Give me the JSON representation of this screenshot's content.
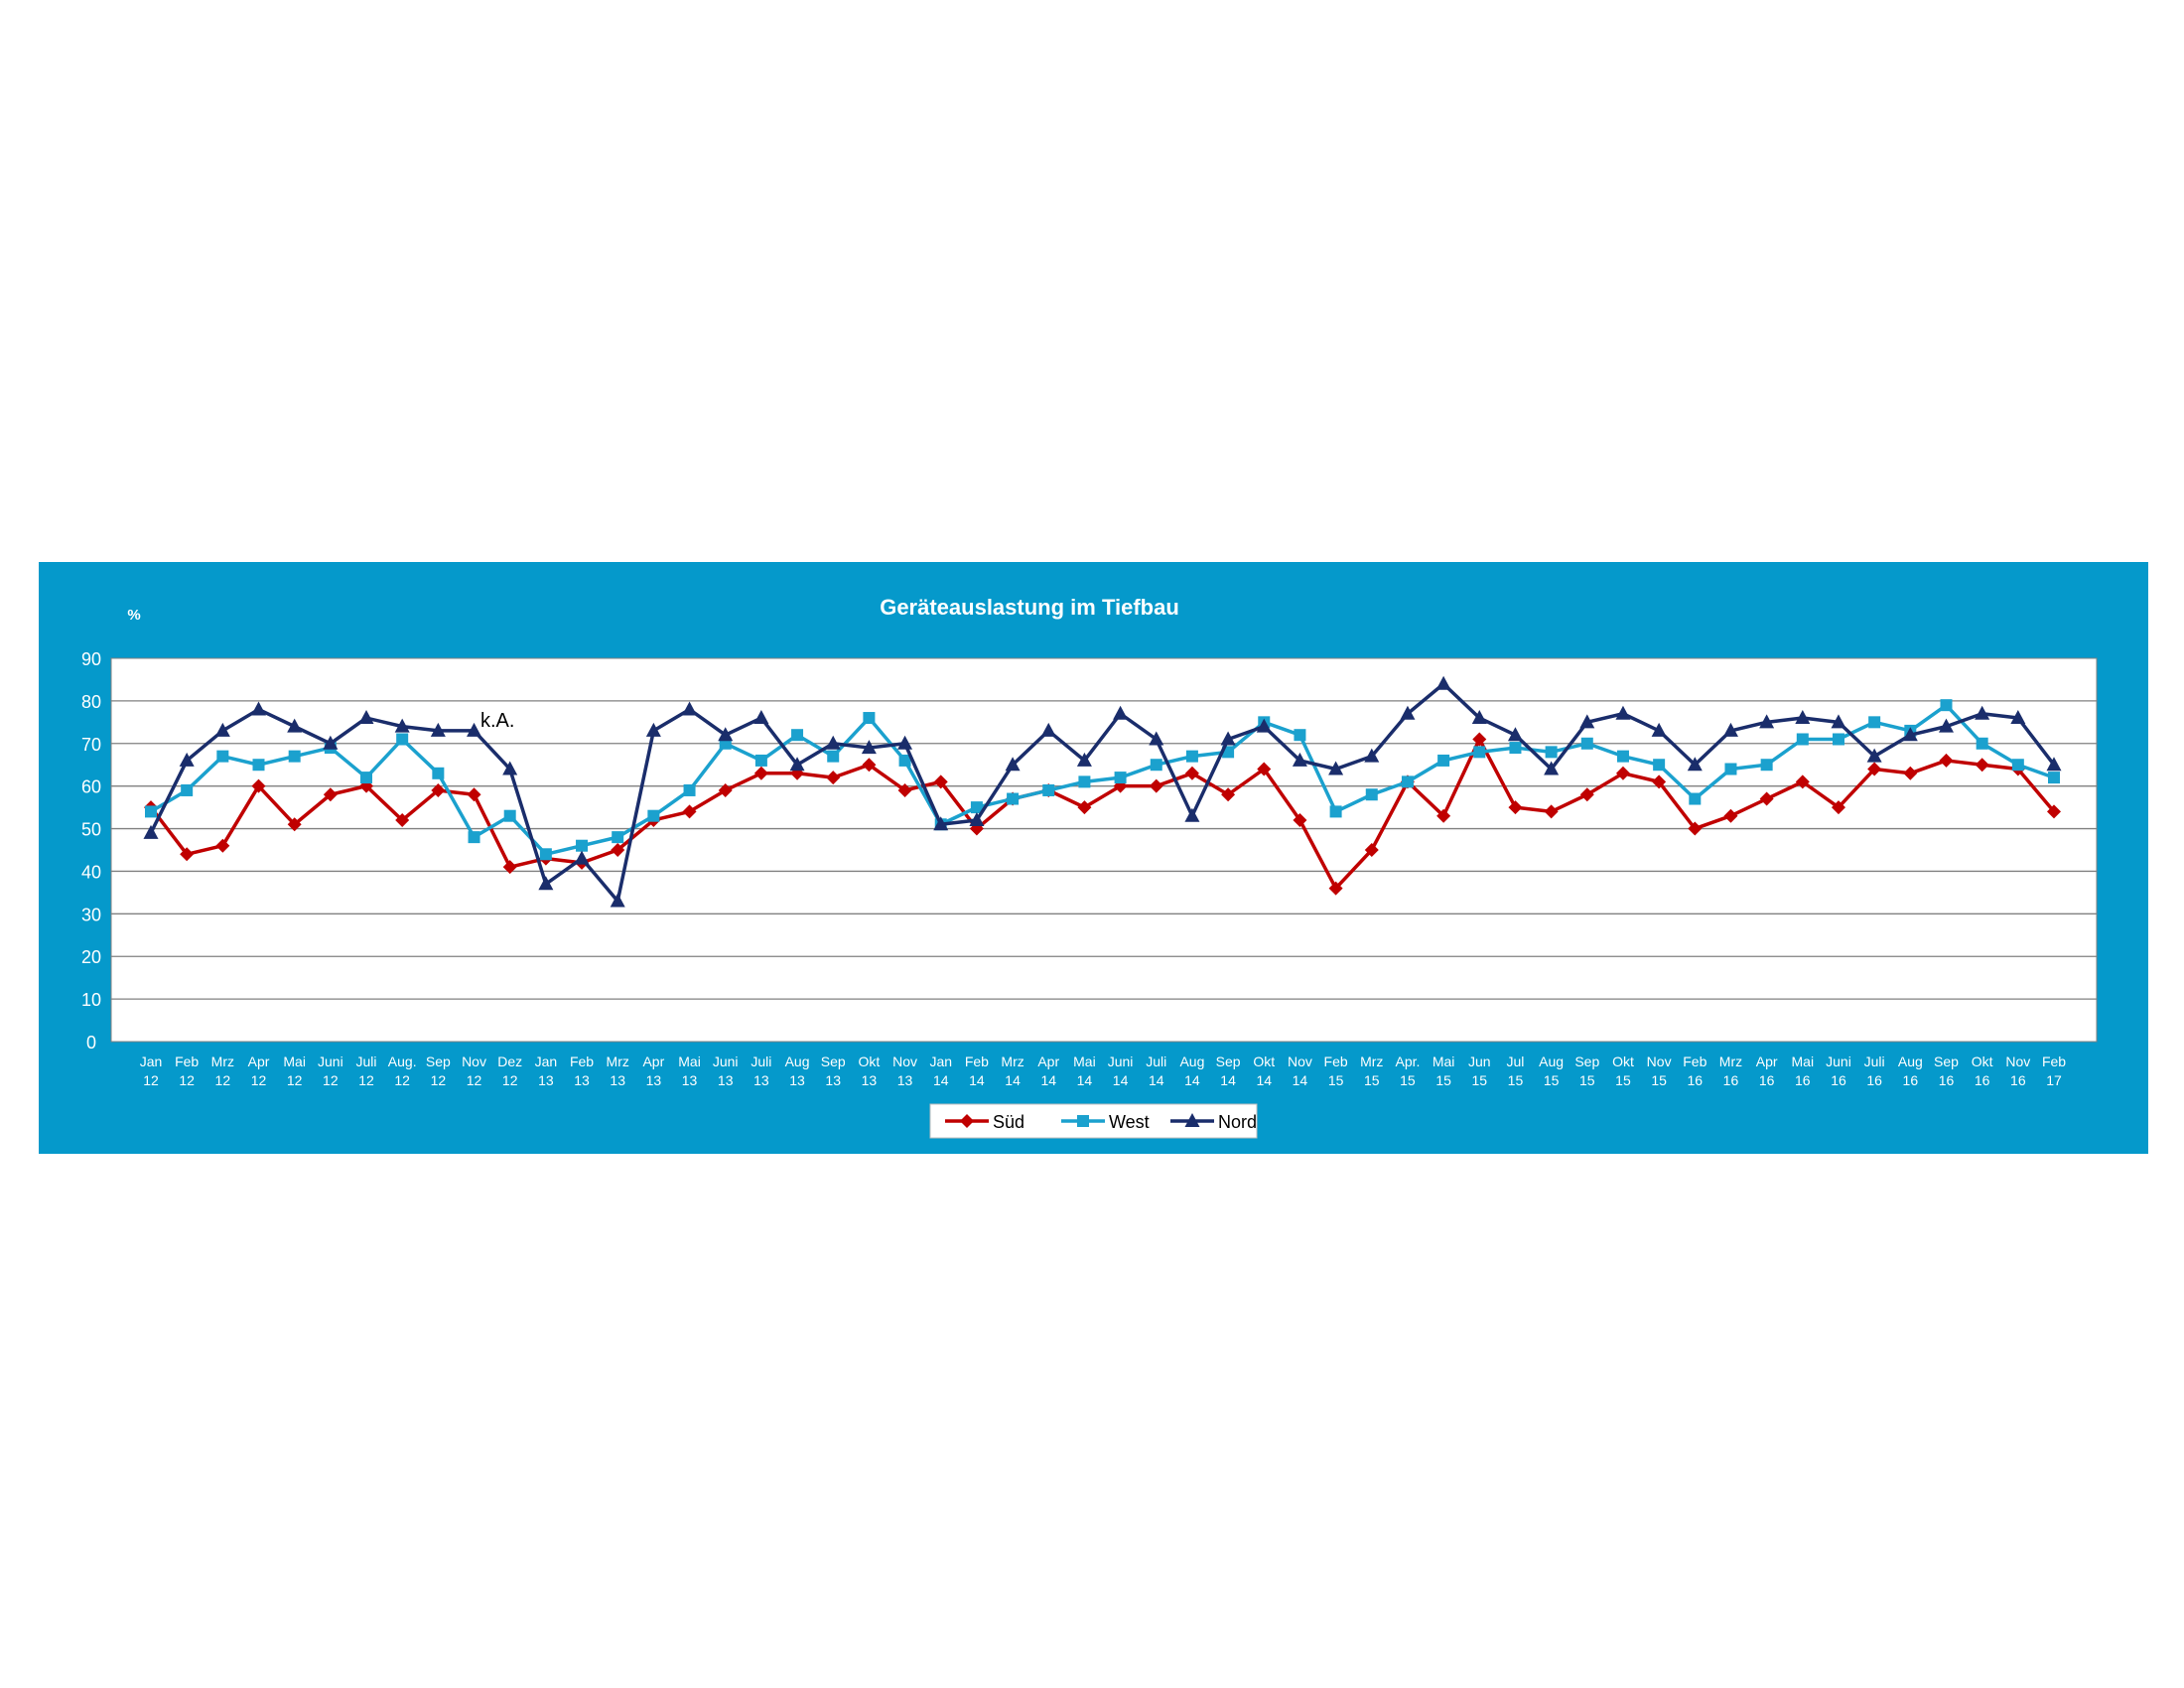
{
  "chart_data": {
    "type": "line",
    "title": "Geräteauslastung im Tiefbau",
    "ylabel": "%",
    "xlabel": "",
    "ylim": [
      0,
      90
    ],
    "yticks": [
      0,
      10,
      20,
      30,
      40,
      50,
      60,
      70,
      80,
      90
    ],
    "grid": true,
    "legend_position": "bottom",
    "annotation": "k.A.",
    "categories": [
      [
        "Jan",
        "12"
      ],
      [
        "Feb",
        "12"
      ],
      [
        "Mrz",
        "12"
      ],
      [
        "Apr",
        "12"
      ],
      [
        "Mai",
        "12"
      ],
      [
        "Juni",
        "12"
      ],
      [
        "Juli",
        "12"
      ],
      [
        "Aug.",
        "12"
      ],
      [
        "Sep",
        "12"
      ],
      [
        "Nov",
        "12"
      ],
      [
        "Dez",
        "12"
      ],
      [
        "Jan",
        "13"
      ],
      [
        "Feb",
        "13"
      ],
      [
        "Mrz",
        "13"
      ],
      [
        "Apr",
        "13"
      ],
      [
        "Mai",
        "13"
      ],
      [
        "Juni",
        "13"
      ],
      [
        "Juli",
        "13"
      ],
      [
        "Aug",
        "13"
      ],
      [
        "Sep",
        "13"
      ],
      [
        "Okt",
        "13"
      ],
      [
        "Nov",
        "13"
      ],
      [
        "Jan",
        "14"
      ],
      [
        "Feb",
        "14"
      ],
      [
        "Mrz",
        "14"
      ],
      [
        "Apr",
        "14"
      ],
      [
        "Mai",
        "14"
      ],
      [
        "Juni",
        "14"
      ],
      [
        "Juli",
        "14"
      ],
      [
        "Aug",
        "14"
      ],
      [
        "Sep",
        "14"
      ],
      [
        "Okt",
        "14"
      ],
      [
        "Nov",
        "14"
      ],
      [
        "Feb",
        "15"
      ],
      [
        "Mrz",
        "15"
      ],
      [
        "Apr.",
        "15"
      ],
      [
        "Mai",
        "15"
      ],
      [
        "Jun",
        "15"
      ],
      [
        "Jul",
        "15"
      ],
      [
        "Aug",
        "15"
      ],
      [
        "Sep",
        "15"
      ],
      [
        "Okt",
        "15"
      ],
      [
        "Nov",
        "15"
      ],
      [
        "Feb",
        "16"
      ],
      [
        "Mrz",
        "16"
      ],
      [
        "Apr",
        "16"
      ],
      [
        "Mai",
        "16"
      ],
      [
        "Juni",
        "16"
      ],
      [
        "Juli",
        "16"
      ],
      [
        "Aug",
        "16"
      ],
      [
        "Sep",
        "16"
      ],
      [
        "Okt",
        "16"
      ],
      [
        "Nov",
        "16"
      ],
      [
        "Feb",
        "17"
      ]
    ],
    "series": [
      {
        "name": "Süd",
        "color": "#C00000",
        "marker": "diamond",
        "values": [
          55,
          44,
          46,
          60,
          51,
          58,
          60,
          52,
          59,
          58,
          41,
          43,
          42,
          45,
          52,
          54,
          59,
          63,
          63,
          62,
          65,
          59,
          61,
          50,
          57,
          59,
          55,
          60,
          60,
          63,
          58,
          64,
          52,
          36,
          45,
          61,
          53,
          71,
          55,
          54,
          58,
          63,
          61,
          50,
          53,
          57,
          61,
          55,
          64,
          63,
          66,
          65,
          64,
          54
        ]
      },
      {
        "name": "West",
        "color": "#1BA1CE",
        "marker": "square",
        "values": [
          54,
          59,
          67,
          65,
          67,
          69,
          62,
          71,
          63,
          48,
          53,
          44,
          46,
          48,
          53,
          59,
          70,
          66,
          72,
          67,
          76,
          66,
          51,
          55,
          57,
          59,
          61,
          62,
          65,
          67,
          68,
          75,
          72,
          54,
          58,
          61,
          66,
          68,
          69,
          68,
          70,
          67,
          65,
          57,
          64,
          65,
          71,
          71,
          75,
          73,
          79,
          70,
          65,
          62
        ]
      },
      {
        "name": "Nord",
        "color": "#1A2D6B",
        "marker": "triangle",
        "values": [
          49,
          66,
          73,
          78,
          74,
          70,
          76,
          74,
          73,
          73,
          64,
          37,
          43,
          33,
          73,
          78,
          72,
          76,
          65,
          70,
          69,
          70,
          51,
          52,
          65,
          73,
          66,
          77,
          71,
          53,
          71,
          74,
          66,
          64,
          67,
          77,
          84,
          76,
          72,
          64,
          75,
          77,
          73,
          65,
          73,
          75,
          76,
          75,
          67,
          72,
          74,
          77,
          76,
          65
        ]
      }
    ]
  }
}
